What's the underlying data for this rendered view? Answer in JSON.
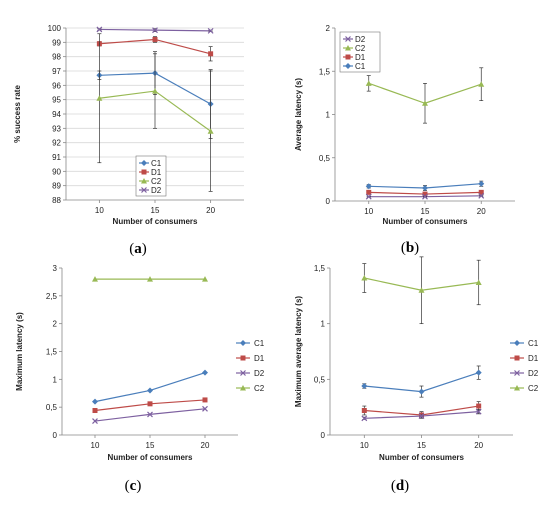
{
  "colors": {
    "C1": "#4a7ebb",
    "D1": "#be4b48",
    "C2": "#98b954",
    "D2": "#7d60a0",
    "axis": "#888888",
    "grid": "#d9d9d9",
    "errbar": "#333333"
  },
  "chart_data": [
    {
      "panel_label": {
        "open": "(",
        "letter": "a",
        "close": ")"
      },
      "type": "line",
      "xlabel": "Number of consumers",
      "ylabel": "% success rate",
      "x": [
        10,
        15,
        20
      ],
      "xlim": [
        7,
        23
      ],
      "ylim": [
        88,
        100
      ],
      "yticks": [
        88,
        89,
        90,
        91,
        92,
        93,
        94,
        95,
        96,
        97,
        98,
        99,
        100
      ],
      "ytick_labels": [
        "88",
        "89",
        "90",
        "91",
        "92",
        "93",
        "94",
        "95",
        "96",
        "97",
        "98",
        "99",
        "100"
      ],
      "grid": "horizontal",
      "legend_position": "bottom-center",
      "legend_order": [
        "C1",
        "D1",
        "C2",
        "D2"
      ],
      "series": [
        {
          "name": "C1",
          "values": [
            96.7,
            96.85,
            94.7
          ],
          "errors": [
            0.3,
            1.5,
            2.4
          ]
        },
        {
          "name": "D1",
          "values": [
            98.9,
            99.2,
            98.2
          ],
          "errors": [
            0.15,
            0.2,
            0.5
          ]
        },
        {
          "name": "C2",
          "values": [
            95.1,
            95.6,
            92.8
          ],
          "errors": [
            4.5,
            2.6,
            4.2
          ]
        },
        {
          "name": "D2",
          "values": [
            99.9,
            99.85,
            99.8
          ],
          "errors": [
            0.05,
            0.1,
            0.05
          ]
        }
      ]
    },
    {
      "panel_label": {
        "open": "(",
        "letter": "b",
        "close": ")"
      },
      "type": "line",
      "xlabel": "Number of consumers",
      "ylabel": "Average latency (s)",
      "x": [
        10,
        15,
        20
      ],
      "xlim": [
        7,
        23
      ],
      "ylim": [
        0,
        2
      ],
      "yticks": [
        0,
        0.5,
        1,
        1.5,
        2
      ],
      "ytick_labels": [
        "0",
        "0,5",
        "1",
        "1,5",
        "2"
      ],
      "grid": "none",
      "legend_position": "top-left",
      "legend_order": [
        "D2",
        "C2",
        "D1",
        "C1"
      ],
      "series": [
        {
          "name": "C1",
          "values": [
            0.17,
            0.15,
            0.2
          ],
          "errors": [
            0.02,
            0.03,
            0.03
          ]
        },
        {
          "name": "D1",
          "values": [
            0.1,
            0.08,
            0.1
          ],
          "errors": [
            0.01,
            0.01,
            0.02
          ]
        },
        {
          "name": "C2",
          "values": [
            1.36,
            1.13,
            1.35
          ],
          "errors": [
            0.09,
            0.23,
            0.19
          ]
        },
        {
          "name": "D2",
          "values": [
            0.05,
            0.05,
            0.06
          ],
          "errors": [
            0.005,
            0.005,
            0.005
          ]
        }
      ]
    },
    {
      "panel_label": {
        "open": "(",
        "letter": "c",
        "close": ")"
      },
      "type": "line",
      "xlabel": "Number of consumers",
      "ylabel": "Maximum latency (s)",
      "x": [
        10,
        15,
        20
      ],
      "xlim": [
        7,
        23
      ],
      "ylim": [
        0,
        3
      ],
      "yticks": [
        0,
        0.5,
        1,
        1.5,
        2,
        2.5,
        3
      ],
      "ytick_labels": [
        "0",
        "0,5",
        "1",
        "1,5",
        "2",
        "2,5",
        "3"
      ],
      "grid": "none",
      "legend_position": "right",
      "legend_order": [
        "C1",
        "D1",
        "D2",
        "C2"
      ],
      "series": [
        {
          "name": "C1",
          "values": [
            0.6,
            0.8,
            1.12
          ],
          "errors": [
            0,
            0,
            0
          ]
        },
        {
          "name": "D1",
          "values": [
            0.44,
            0.56,
            0.63
          ],
          "errors": [
            0,
            0,
            0
          ]
        },
        {
          "name": "D2",
          "values": [
            0.25,
            0.37,
            0.47
          ],
          "errors": [
            0,
            0,
            0
          ]
        },
        {
          "name": "C2",
          "values": [
            2.8,
            2.8,
            2.8
          ],
          "errors": [
            0,
            0,
            0
          ]
        }
      ]
    },
    {
      "panel_label": {
        "open": "(",
        "letter": "d",
        "close": ")"
      },
      "type": "line",
      "xlabel": "Number of consumers",
      "ylabel": "Maximum average latency (s)",
      "x": [
        10,
        15,
        20
      ],
      "xlim": [
        7,
        23
      ],
      "ylim": [
        0,
        1.5
      ],
      "yticks": [
        0,
        0.5,
        1,
        1.5
      ],
      "ytick_labels": [
        "0",
        "0,5",
        "1",
        "1,5"
      ],
      "grid": "none",
      "legend_position": "right",
      "legend_order": [
        "C1",
        "D1",
        "D2",
        "C2"
      ],
      "series": [
        {
          "name": "C1",
          "values": [
            0.44,
            0.39,
            0.56
          ],
          "errors": [
            0.02,
            0.05,
            0.06
          ]
        },
        {
          "name": "D1",
          "values": [
            0.22,
            0.18,
            0.26
          ],
          "errors": [
            0.04,
            0.03,
            0.04
          ]
        },
        {
          "name": "D2",
          "values": [
            0.15,
            0.17,
            0.21
          ],
          "errors": [
            0.01,
            0.01,
            0.02
          ]
        },
        {
          "name": "C2",
          "values": [
            1.41,
            1.3,
            1.37
          ],
          "errors": [
            0.13,
            0.3,
            0.2
          ]
        }
      ]
    }
  ]
}
